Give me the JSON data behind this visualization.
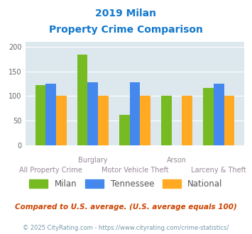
{
  "title_line1": "2019 Milan",
  "title_line2": "Property Crime Comparison",
  "categories": [
    "All Property Crime",
    "Burglary",
    "Motor Vehicle Theft",
    "Arson",
    "Larceny & Theft"
  ],
  "milan": [
    122,
    185,
    61,
    100,
    116
  ],
  "tennessee": [
    125,
    128,
    128,
    0,
    125
  ],
  "national": [
    100,
    100,
    100,
    100,
    100
  ],
  "milan_color": "#77bb22",
  "tennessee_color": "#4488ee",
  "national_color": "#ffaa22",
  "bg_color": "#dce8ee",
  "title_color": "#1177cc",
  "footnote1_color": "#cc4400",
  "footnote2_color": "#7799aa",
  "grid_color": "#ffffff",
  "ylim": [
    0,
    210
  ],
  "yticks": [
    0,
    50,
    100,
    150,
    200
  ],
  "top_labels": [
    [
      1,
      "Burglary"
    ],
    [
      3,
      "Arson"
    ]
  ],
  "bottom_labels": [
    [
      0,
      "All Property Crime"
    ],
    [
      2,
      "Motor Vehicle Theft"
    ],
    [
      4,
      "Larceny & Theft"
    ]
  ],
  "footnote1": "Compared to U.S. average. (U.S. average equals 100)",
  "footnote2": "© 2025 CityRating.com - https://www.cityrating.com/crime-statistics/",
  "legend_labels": [
    "Milan",
    "Tennessee",
    "National"
  ]
}
